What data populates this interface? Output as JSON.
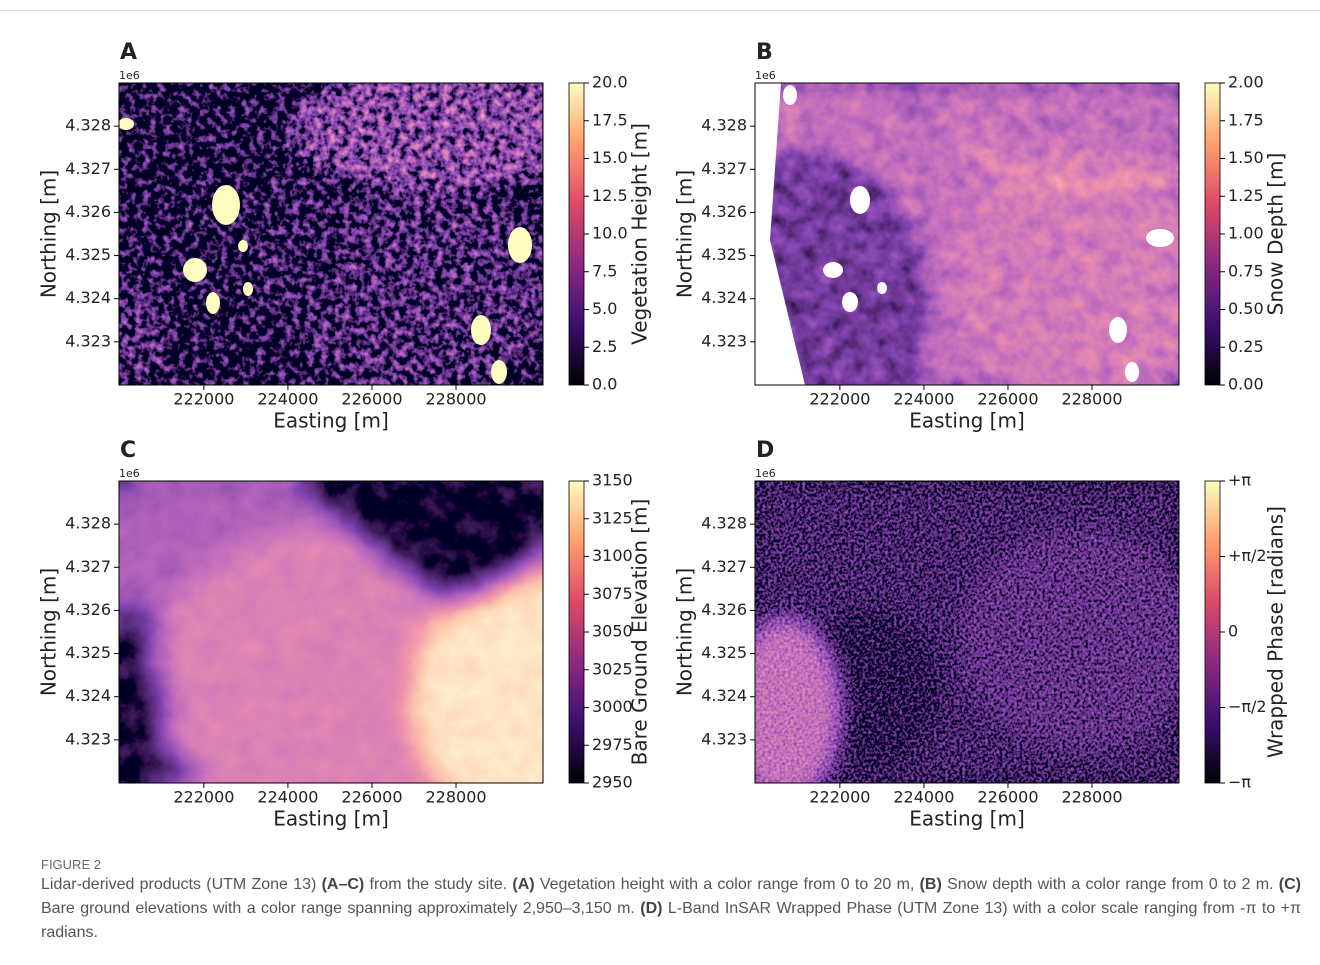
{
  "chart_data": [
    {
      "type": "raster",
      "panel_label": "A",
      "offset_label": "1e6",
      "xlabel": "Easting [m]",
      "ylabel": "Northing [m]",
      "xlim": [
        219980,
        230070
      ],
      "ylim": [
        4.322,
        4.329
      ],
      "xticks": [
        222000,
        224000,
        226000,
        228000
      ],
      "yticks": [
        4.323,
        4.324,
        4.325,
        4.326,
        4.327,
        4.328
      ],
      "colormap": "magma",
      "colorbar": {
        "label": "Vegetation Height [m]",
        "lim": [
          0,
          20
        ],
        "ticks": [
          {
            "value": 0,
            "label": "0.0"
          },
          {
            "value": 2.5,
            "label": "2.5"
          },
          {
            "value": 5,
            "label": "5.0"
          },
          {
            "value": 7.5,
            "label": "7.5"
          },
          {
            "value": 10,
            "label": "10.0"
          },
          {
            "value": 12.5,
            "label": "12.5"
          },
          {
            "value": 15,
            "label": "15.0"
          },
          {
            "value": 17.5,
            "label": "17.5"
          },
          {
            "value": 20,
            "label": "20.0"
          }
        ]
      }
    },
    {
      "type": "raster",
      "panel_label": "B",
      "offset_label": "1e6",
      "xlabel": "Easting [m]",
      "ylabel": "Northing [m]",
      "xlim": [
        219980,
        230070
      ],
      "ylim": [
        4.322,
        4.329
      ],
      "xticks": [
        222000,
        224000,
        226000,
        228000
      ],
      "yticks": [
        4.323,
        4.324,
        4.325,
        4.326,
        4.327,
        4.328
      ],
      "colormap": "magma",
      "colorbar": {
        "label": "Snow Depth [m]",
        "lim": [
          0,
          2
        ],
        "ticks": [
          {
            "value": 0,
            "label": "0.00"
          },
          {
            "value": 0.25,
            "label": "0.25"
          },
          {
            "value": 0.5,
            "label": "0.50"
          },
          {
            "value": 0.75,
            "label": "0.75"
          },
          {
            "value": 1,
            "label": "1.00"
          },
          {
            "value": 1.25,
            "label": "1.25"
          },
          {
            "value": 1.5,
            "label": "1.50"
          },
          {
            "value": 1.75,
            "label": "1.75"
          },
          {
            "value": 2,
            "label": "2.00"
          }
        ]
      }
    },
    {
      "type": "raster",
      "panel_label": "C",
      "offset_label": "1e6",
      "xlabel": "Easting [m]",
      "ylabel": "Northing [m]",
      "xlim": [
        219980,
        230070
      ],
      "ylim": [
        4.322,
        4.329
      ],
      "xticks": [
        222000,
        224000,
        226000,
        228000
      ],
      "yticks": [
        4.323,
        4.324,
        4.325,
        4.326,
        4.327,
        4.328
      ],
      "colormap": "magma",
      "colorbar": {
        "label": "Bare Ground Elevation [m]",
        "lim": [
          2950,
          3150
        ],
        "ticks": [
          2950,
          2975,
          3000,
          3025,
          3050,
          3075,
          3100,
          3125,
          3150
        ]
      }
    },
    {
      "type": "raster",
      "panel_label": "D",
      "offset_label": "1e6",
      "xlabel": "Easting [m]",
      "ylabel": "Northing [m]",
      "xlim": [
        219980,
        230070
      ],
      "ylim": [
        4.322,
        4.329
      ],
      "xticks": [
        222000,
        224000,
        226000,
        228000
      ],
      "yticks": [
        4.323,
        4.324,
        4.325,
        4.326,
        4.327,
        4.328
      ],
      "colormap": "magma",
      "colorbar": {
        "label": "Wrapped Phase [radians]",
        "lim": [
          -3.14159,
          3.14159
        ],
        "ticks": [
          {
            "value": -3.14159,
            "label": "−π"
          },
          {
            "value": -1.5708,
            "label": "−π/2"
          },
          0,
          {
            "value": 1.5708,
            "label": "+π/2"
          },
          {
            "value": 3.14159,
            "label": "+π"
          }
        ]
      }
    }
  ],
  "caption": {
    "label": "FIGURE 2",
    "segments": [
      {
        "text": "Lidar-derived products (UTM Zone 13) "
      },
      {
        "text": "(A–C)",
        "bold": true
      },
      {
        "text": " from the study site. "
      },
      {
        "text": "(A)",
        "bold": true
      },
      {
        "text": " Vegetation height with a color range from 0 to 20 m, "
      },
      {
        "text": "(B)",
        "bold": true
      },
      {
        "text": " Snow depth with a color range from 0 to 2 m. "
      },
      {
        "text": "(C)",
        "bold": true
      },
      {
        "text": " Bare ground elevations with a color range spanning approximately 2,950–3,150 m. "
      },
      {
        "text": "(D)",
        "bold": true
      },
      {
        "text": " L-Band InSAR Wrapped Phase (UTM Zone 13) with a color scale ranging from -π to +π radians."
      }
    ]
  }
}
